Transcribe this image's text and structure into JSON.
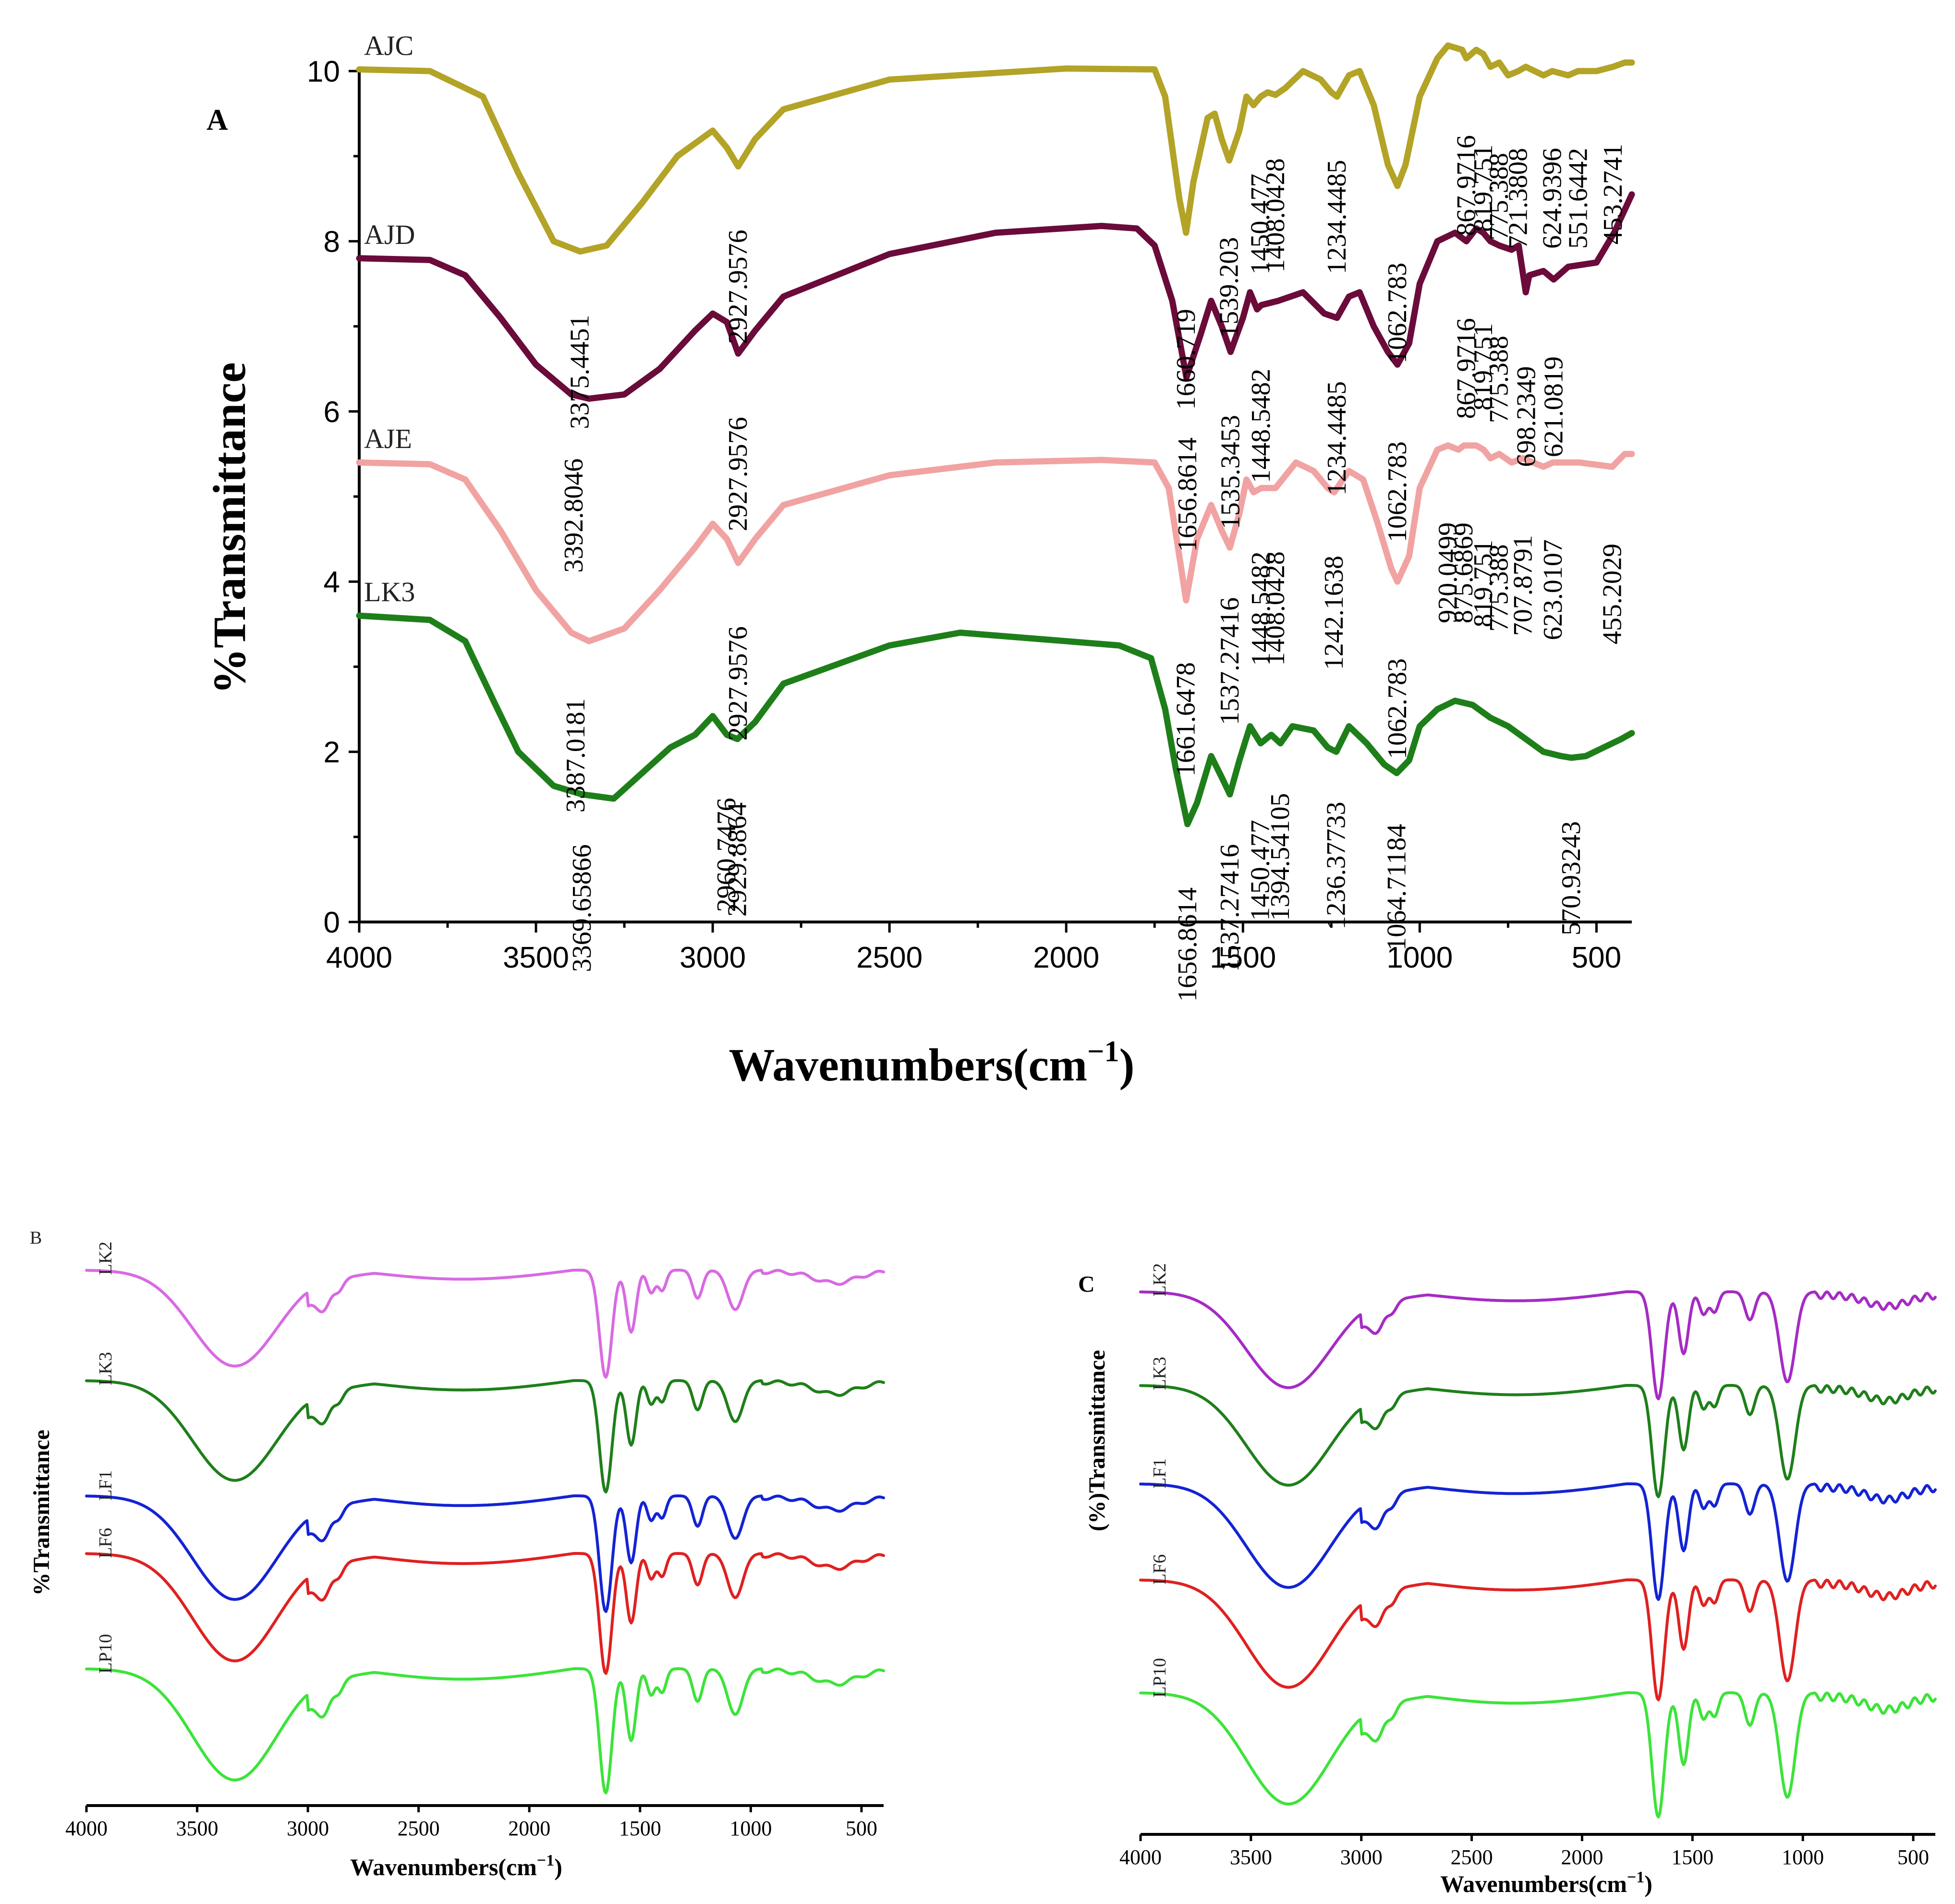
{
  "chart_data": [
    {
      "panel": "A",
      "type": "line",
      "title": "",
      "xlabel": "Wavenumbers(cm",
      "xlabel_sup": "−1",
      "xlabel_end": ")",
      "ylabel": "%Transmittance",
      "xlim": [
        4000,
        400
      ],
      "ylim": [
        0,
        10
      ],
      "xticks": [
        4000,
        3500,
        3000,
        2500,
        2000,
        1500,
        1000,
        500
      ],
      "yticks": [
        0,
        2,
        4,
        6,
        8,
        10
      ],
      "series": [
        {
          "name": "AJC",
          "color": "#b3a327",
          "points": [
            [
              4000,
              10.02
            ],
            [
              3800,
              10.0
            ],
            [
              3650,
              9.7
            ],
            [
              3550,
              8.8
            ],
            [
              3450,
              8.0
            ],
            [
              3375,
              7.88
            ],
            [
              3300,
              7.95
            ],
            [
              3200,
              8.45
            ],
            [
              3100,
              9.0
            ],
            [
              3000,
              9.3
            ],
            [
              2960,
              9.1
            ],
            [
              2928,
              8.88
            ],
            [
              2880,
              9.2
            ],
            [
              2800,
              9.55
            ],
            [
              2500,
              9.9
            ],
            [
              2000,
              10.03
            ],
            [
              1750,
              10.02
            ],
            [
              1720,
              9.7
            ],
            [
              1680,
              8.5
            ],
            [
              1661,
              8.1
            ],
            [
              1640,
              8.7
            ],
            [
              1600,
              9.45
            ],
            [
              1580,
              9.5
            ],
            [
              1560,
              9.2
            ],
            [
              1539,
              8.95
            ],
            [
              1510,
              9.3
            ],
            [
              1490,
              9.7
            ],
            [
              1470,
              9.6
            ],
            [
              1450,
              9.7
            ],
            [
              1430,
              9.75
            ],
            [
              1408,
              9.72
            ],
            [
              1380,
              9.8
            ],
            [
              1330,
              10.0
            ],
            [
              1280,
              9.9
            ],
            [
              1250,
              9.75
            ],
            [
              1234,
              9.7
            ],
            [
              1200,
              9.95
            ],
            [
              1170,
              10.0
            ],
            [
              1130,
              9.6
            ],
            [
              1090,
              8.9
            ],
            [
              1063,
              8.65
            ],
            [
              1040,
              8.9
            ],
            [
              1000,
              9.7
            ],
            [
              950,
              10.15
            ],
            [
              920,
              10.3
            ],
            [
              880,
              10.25
            ],
            [
              868,
              10.15
            ],
            [
              840,
              10.25
            ],
            [
              820,
              10.2
            ],
            [
              800,
              10.05
            ],
            [
              775,
              10.1
            ],
            [
              750,
              9.95
            ],
            [
              721,
              10.0
            ],
            [
              700,
              10.05
            ],
            [
              650,
              9.95
            ],
            [
              625,
              10.0
            ],
            [
              580,
              9.95
            ],
            [
              552,
              10.0
            ],
            [
              500,
              10.0
            ],
            [
              453,
              10.05
            ],
            [
              420,
              10.1
            ],
            [
              400,
              10.1
            ]
          ],
          "peak_labels": [
            "3375.4451",
            "2927.9576",
            "1660.719",
            "1539.203",
            "1450.477",
            "1408.0428",
            "1234.4485",
            "1062.783",
            "867.9716",
            "819.751",
            "775.388",
            "721.3808",
            "624.9396",
            "551.6442",
            "453.2741"
          ]
        },
        {
          "name": "AJD",
          "color": "#6a0b3a",
          "points": [
            [
              4000,
              7.8
            ],
            [
              3800,
              7.78
            ],
            [
              3700,
              7.6
            ],
            [
              3600,
              7.1
            ],
            [
              3500,
              6.55
            ],
            [
              3400,
              6.2
            ],
            [
              3350,
              6.15
            ],
            [
              3250,
              6.2
            ],
            [
              3150,
              6.5
            ],
            [
              3050,
              6.95
            ],
            [
              3000,
              7.15
            ],
            [
              2960,
              7.05
            ],
            [
              2928,
              6.68
            ],
            [
              2880,
              6.95
            ],
            [
              2800,
              7.35
            ],
            [
              2500,
              7.85
            ],
            [
              2200,
              8.1
            ],
            [
              1900,
              8.18
            ],
            [
              1800,
              8.15
            ],
            [
              1750,
              7.95
            ],
            [
              1700,
              7.3
            ],
            [
              1660,
              6.4
            ],
            [
              1620,
              6.9
            ],
            [
              1590,
              7.3
            ],
            [
              1560,
              7.0
            ],
            [
              1535,
              6.7
            ],
            [
              1500,
              7.1
            ],
            [
              1480,
              7.4
            ],
            [
              1460,
              7.2
            ],
            [
              1448,
              7.25
            ],
            [
              1400,
              7.3
            ],
            [
              1330,
              7.4
            ],
            [
              1270,
              7.15
            ],
            [
              1234,
              7.1
            ],
            [
              1200,
              7.35
            ],
            [
              1170,
              7.4
            ],
            [
              1130,
              7.0
            ],
            [
              1090,
              6.7
            ],
            [
              1063,
              6.55
            ],
            [
              1030,
              6.8
            ],
            [
              1000,
              7.5
            ],
            [
              950,
              8.0
            ],
            [
              900,
              8.1
            ],
            [
              868,
              8.0
            ],
            [
              840,
              8.15
            ],
            [
              820,
              8.1
            ],
            [
              800,
              8.0
            ],
            [
              775,
              7.95
            ],
            [
              740,
              7.9
            ],
            [
              720,
              7.95
            ],
            [
              700,
              7.4
            ],
            [
              690,
              7.6
            ],
            [
              650,
              7.65
            ],
            [
              621,
              7.55
            ],
            [
              580,
              7.7
            ],
            [
              500,
              7.75
            ],
            [
              450,
              8.1
            ],
            [
              400,
              8.55
            ]
          ],
          "peak_labels": [
            "3392.8046",
            "2927.9576",
            "1656.8614",
            "1535.3453",
            "1448.5482",
            "1234.4485",
            "1062.783",
            "867.9716",
            "819.751",
            "775.388",
            "698.2349",
            "621.0819"
          ]
        },
        {
          "name": "AJE",
          "color": "#f0a3a2",
          "points": [
            [
              4000,
              5.4
            ],
            [
              3800,
              5.38
            ],
            [
              3700,
              5.2
            ],
            [
              3600,
              4.6
            ],
            [
              3500,
              3.9
            ],
            [
              3400,
              3.4
            ],
            [
              3350,
              3.3
            ],
            [
              3250,
              3.45
            ],
            [
              3150,
              3.9
            ],
            [
              3050,
              4.4
            ],
            [
              3000,
              4.68
            ],
            [
              2960,
              4.5
            ],
            [
              2928,
              4.22
            ],
            [
              2880,
              4.5
            ],
            [
              2800,
              4.9
            ],
            [
              2500,
              5.25
            ],
            [
              2200,
              5.4
            ],
            [
              1900,
              5.43
            ],
            [
              1750,
              5.4
            ],
            [
              1710,
              5.1
            ],
            [
              1680,
              4.3
            ],
            [
              1661,
              3.78
            ],
            [
              1630,
              4.5
            ],
            [
              1590,
              4.9
            ],
            [
              1560,
              4.6
            ],
            [
              1537,
              4.4
            ],
            [
              1510,
              4.8
            ],
            [
              1490,
              5.2
            ],
            [
              1470,
              5.05
            ],
            [
              1448,
              5.1
            ],
            [
              1408,
              5.1
            ],
            [
              1350,
              5.4
            ],
            [
              1300,
              5.3
            ],
            [
              1260,
              5.1
            ],
            [
              1242,
              5.05
            ],
            [
              1200,
              5.3
            ],
            [
              1160,
              5.2
            ],
            [
              1120,
              4.7
            ],
            [
              1080,
              4.15
            ],
            [
              1063,
              4.0
            ],
            [
              1030,
              4.3
            ],
            [
              1000,
              5.1
            ],
            [
              950,
              5.55
            ],
            [
              920,
              5.6
            ],
            [
              890,
              5.55
            ],
            [
              875,
              5.6
            ],
            [
              840,
              5.6
            ],
            [
              819,
              5.55
            ],
            [
              800,
              5.45
            ],
            [
              775,
              5.5
            ],
            [
              740,
              5.4
            ],
            [
              708,
              5.45
            ],
            [
              650,
              5.35
            ],
            [
              623,
              5.4
            ],
            [
              550,
              5.4
            ],
            [
              455,
              5.35
            ],
            [
              420,
              5.5
            ],
            [
              400,
              5.5
            ]
          ],
          "peak_labels": [
            "3387.0181",
            "2927.9576",
            "1661.6478",
            "1537.27416",
            "1448.5482",
            "1408.0428",
            "1242.1638",
            "1062.783",
            "920.0499",
            "875.6869",
            "819.751",
            "775.388",
            "707.8791",
            "623.0107",
            "455.2029"
          ]
        },
        {
          "name": "LK3",
          "color": "#1e7f1a",
          "points": [
            [
              4000,
              3.6
            ],
            [
              3800,
              3.55
            ],
            [
              3700,
              3.3
            ],
            [
              3620,
              2.6
            ],
            [
              3550,
              2.0
            ],
            [
              3450,
              1.6
            ],
            [
              3370,
              1.5
            ],
            [
              3280,
              1.45
            ],
            [
              3200,
              1.75
            ],
            [
              3120,
              2.05
            ],
            [
              3050,
              2.2
            ],
            [
              3000,
              2.42
            ],
            [
              2960,
              2.2
            ],
            [
              2930,
              2.15
            ],
            [
              2880,
              2.35
            ],
            [
              2800,
              2.8
            ],
            [
              2500,
              3.25
            ],
            [
              2300,
              3.4
            ],
            [
              2000,
              3.3
            ],
            [
              1850,
              3.25
            ],
            [
              1760,
              3.1
            ],
            [
              1720,
              2.5
            ],
            [
              1690,
              1.8
            ],
            [
              1657,
              1.15
            ],
            [
              1630,
              1.4
            ],
            [
              1590,
              1.95
            ],
            [
              1560,
              1.7
            ],
            [
              1537,
              1.5
            ],
            [
              1510,
              1.9
            ],
            [
              1480,
              2.3
            ],
            [
              1450,
              2.1
            ],
            [
              1420,
              2.2
            ],
            [
              1394,
              2.1
            ],
            [
              1360,
              2.3
            ],
            [
              1300,
              2.25
            ],
            [
              1260,
              2.05
            ],
            [
              1236,
              2.0
            ],
            [
              1200,
              2.3
            ],
            [
              1150,
              2.1
            ],
            [
              1100,
              1.85
            ],
            [
              1065,
              1.75
            ],
            [
              1030,
              1.9
            ],
            [
              1000,
              2.3
            ],
            [
              950,
              2.5
            ],
            [
              900,
              2.6
            ],
            [
              850,
              2.55
            ],
            [
              800,
              2.4
            ],
            [
              750,
              2.3
            ],
            [
              700,
              2.15
            ],
            [
              650,
              2.0
            ],
            [
              600,
              1.95
            ],
            [
              571,
              1.93
            ],
            [
              530,
              1.95
            ],
            [
              480,
              2.05
            ],
            [
              430,
              2.15
            ],
            [
              400,
              2.22
            ]
          ],
          "peak_labels": [
            "3369.65866",
            "2960.7476",
            "2929.8864",
            "1656.8614",
            "1537.27416",
            "1450.477",
            "1394.54105",
            "1236.37733",
            "1064.71184",
            "570.93243"
          ]
        }
      ]
    },
    {
      "panel": "B",
      "type": "line",
      "xlabel": "Wavenumbers(cm",
      "xlabel_sup": "−1",
      "xlabel_end": ")",
      "ylabel": "%Transmittance",
      "xlim": [
        4000,
        400
      ],
      "xticks": [
        4000,
        3500,
        3000,
        2500,
        2000,
        1500,
        1000,
        500
      ],
      "series": [
        {
          "name": "LK2",
          "color": "#d86ae3"
        },
        {
          "name": "LK3",
          "color": "#1e7f1a"
        },
        {
          "name": "LF1",
          "color": "#1423d4"
        },
        {
          "name": "LF6",
          "color": "#e02020"
        },
        {
          "name": "LP10",
          "color": "#3de33a"
        }
      ]
    },
    {
      "panel": "C",
      "type": "line",
      "xlabel": "Wavenumbers(cm",
      "xlabel_sup": "−1",
      "xlabel_end": ")",
      "ylabel": "(%)Transmittance",
      "xlim": [
        4000,
        400
      ],
      "xticks": [
        4000,
        3500,
        3000,
        2500,
        2000,
        1500,
        1000,
        500
      ],
      "series": [
        {
          "name": "LK2",
          "color": "#a52bc4"
        },
        {
          "name": "LK3",
          "color": "#1e7f1a"
        },
        {
          "name": "LF1",
          "color": "#1423d4"
        },
        {
          "name": "LF6",
          "color": "#e02020"
        },
        {
          "name": "LP10",
          "color": "#3de33a"
        }
      ]
    }
  ]
}
